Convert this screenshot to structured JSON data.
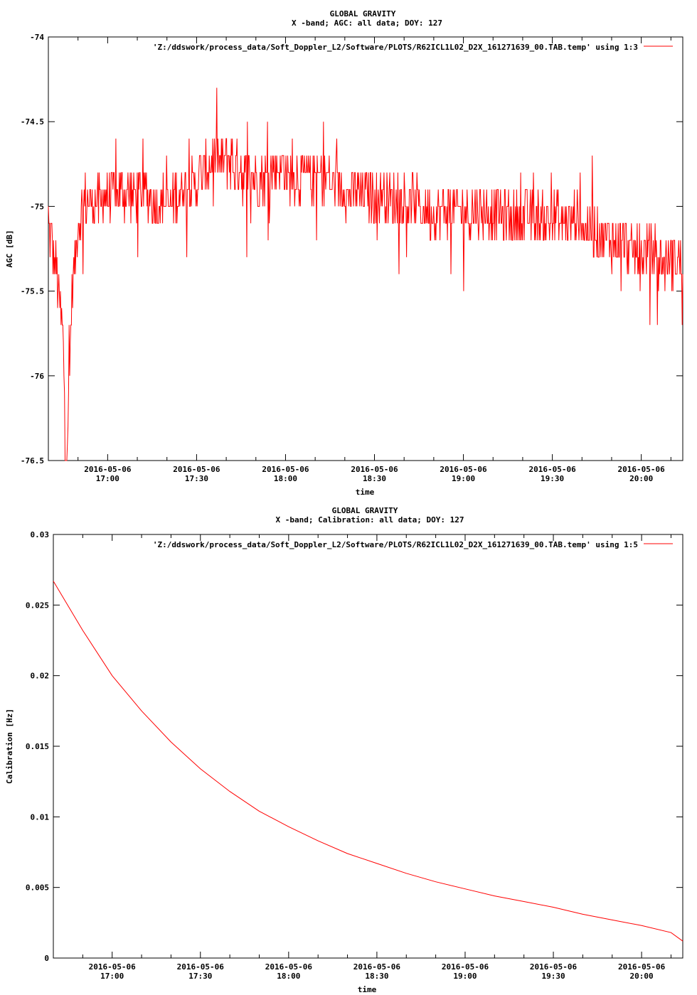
{
  "series_color": "#ff0000",
  "chart_data": [
    {
      "type": "line",
      "title": "GLOBAL GRAVITY",
      "subtitle": "X -band; AGC: all data; DOY: 127",
      "xlabel": "time",
      "ylabel": "AGC [dB]",
      "xlim": [
        "2016-05-06 16:40",
        "2016-05-06 20:14"
      ],
      "ylim": [
        -76.5,
        -74
      ],
      "yticks": [
        -74,
        -74.5,
        -75,
        -75.5,
        -76,
        -76.5
      ],
      "ytick_labels": [
        "-74",
        "-74.5",
        "-75",
        "-75.5",
        "-76",
        "-76.5"
      ],
      "xticks": [
        "2016-05-06 17:00",
        "2016-05-06 17:30",
        "2016-05-06 18:00",
        "2016-05-06 18:30",
        "2016-05-06 19:00",
        "2016-05-06 19:30",
        "2016-05-06 20:00"
      ],
      "xtick_labels": [
        [
          "2016-05-06",
          "17:00"
        ],
        [
          "2016-05-06",
          "17:30"
        ],
        [
          "2016-05-06",
          "18:00"
        ],
        [
          "2016-05-06",
          "18:30"
        ],
        [
          "2016-05-06",
          "19:00"
        ],
        [
          "2016-05-06",
          "19:30"
        ],
        [
          "2016-05-06",
          "20:00"
        ]
      ],
      "legend": "top-right",
      "series": [
        {
          "name": "'Z:/ddswork/process_data/Soft_Doppler_L2/Software/PLOTS/R62ICL1L02_D2X_161271639_00.TAB.temp' using 1:3",
          "x": [
            "2016-05-06 16:40",
            "2016-05-06 16:42",
            "2016-05-06 16:44",
            "2016-05-06 16:45",
            "2016-05-06 16:46",
            "2016-05-06 16:47",
            "2016-05-06 16:48",
            "2016-05-06 16:50",
            "2016-05-06 16:52",
            "2016-05-06 16:55",
            "2016-05-06 16:58",
            "2016-05-06 17:00",
            "2016-05-06 17:05",
            "2016-05-06 17:10",
            "2016-05-06 17:15",
            "2016-05-06 17:20",
            "2016-05-06 17:25",
            "2016-05-06 17:30",
            "2016-05-06 17:35",
            "2016-05-06 17:40",
            "2016-05-06 17:45",
            "2016-05-06 17:50",
            "2016-05-06 17:55",
            "2016-05-06 18:00",
            "2016-05-06 18:05",
            "2016-05-06 18:10",
            "2016-05-06 18:15",
            "2016-05-06 18:20",
            "2016-05-06 18:25",
            "2016-05-06 18:30",
            "2016-05-06 18:35",
            "2016-05-06 18:40",
            "2016-05-06 18:45",
            "2016-05-06 18:50",
            "2016-05-06 18:55",
            "2016-05-06 19:00",
            "2016-05-06 19:05",
            "2016-05-06 19:10",
            "2016-05-06 19:15",
            "2016-05-06 19:20",
            "2016-05-06 19:25",
            "2016-05-06 19:30",
            "2016-05-06 19:35",
            "2016-05-06 19:40",
            "2016-05-06 19:45",
            "2016-05-06 19:50",
            "2016-05-06 19:55",
            "2016-05-06 20:00",
            "2016-05-06 20:05",
            "2016-05-06 20:10",
            "2016-05-06 20:14"
          ],
          "values": [
            -75.1,
            -75.3,
            -75.6,
            -75.8,
            -76.5,
            -76.1,
            -75.5,
            -75.1,
            -75.0,
            -75.0,
            -74.95,
            -74.9,
            -74.95,
            -74.9,
            -74.95,
            -75.0,
            -74.9,
            -74.85,
            -74.75,
            -74.7,
            -74.8,
            -74.85,
            -74.8,
            -74.8,
            -74.85,
            -74.8,
            -74.85,
            -74.9,
            -74.95,
            -74.9,
            -74.95,
            -75.0,
            -75.0,
            -75.05,
            -75.0,
            -75.05,
            -75.05,
            -75.0,
            -75.1,
            -75.05,
            -75.1,
            -75.1,
            -75.05,
            -75.1,
            -75.15,
            -75.2,
            -75.25,
            -75.3,
            -75.3,
            -75.35,
            -75.3
          ]
        }
      ]
    },
    {
      "type": "line",
      "title": "GLOBAL GRAVITY",
      "subtitle": "X -band; Calibration: all data; DOY: 127",
      "xlabel": "time",
      "ylabel": "Calibration [Hz]",
      "xlim": [
        "2016-05-06 16:40",
        "2016-05-06 20:14"
      ],
      "ylim": [
        0,
        0.03
      ],
      "yticks": [
        0,
        0.005,
        0.01,
        0.015,
        0.02,
        0.025,
        0.03
      ],
      "ytick_labels": [
        "0",
        "0.005",
        "0.01",
        "0.015",
        "0.02",
        "0.025",
        "0.03"
      ],
      "xticks": [
        "2016-05-06 17:00",
        "2016-05-06 17:30",
        "2016-05-06 18:00",
        "2016-05-06 18:30",
        "2016-05-06 19:00",
        "2016-05-06 19:30",
        "2016-05-06 20:00"
      ],
      "xtick_labels": [
        [
          "2016-05-06",
          "17:00"
        ],
        [
          "2016-05-06",
          "17:30"
        ],
        [
          "2016-05-06",
          "18:00"
        ],
        [
          "2016-05-06",
          "18:30"
        ],
        [
          "2016-05-06",
          "19:00"
        ],
        [
          "2016-05-06",
          "19:30"
        ],
        [
          "2016-05-06",
          "20:00"
        ]
      ],
      "legend": "top-right",
      "series": [
        {
          "name": "'Z:/ddswork/process_data/Soft_Doppler_L2/Software/PLOTS/R62ICL1L02_D2X_161271639_00.TAB.temp' using 1:5",
          "x": [
            "2016-05-06 16:40",
            "2016-05-06 16:50",
            "2016-05-06 17:00",
            "2016-05-06 17:10",
            "2016-05-06 17:20",
            "2016-05-06 17:30",
            "2016-05-06 17:40",
            "2016-05-06 17:50",
            "2016-05-06 18:00",
            "2016-05-06 18:10",
            "2016-05-06 18:20",
            "2016-05-06 18:30",
            "2016-05-06 18:40",
            "2016-05-06 18:50",
            "2016-05-06 19:00",
            "2016-05-06 19:10",
            "2016-05-06 19:20",
            "2016-05-06 19:30",
            "2016-05-06 19:40",
            "2016-05-06 19:50",
            "2016-05-06 20:00",
            "2016-05-06 20:10",
            "2016-05-06 20:14"
          ],
          "values": [
            0.0267,
            0.0232,
            0.02,
            0.0175,
            0.0153,
            0.0134,
            0.0118,
            0.0104,
            0.0093,
            0.0083,
            0.0074,
            0.0067,
            0.006,
            0.0054,
            0.0049,
            0.0044,
            0.004,
            0.0036,
            0.0031,
            0.0027,
            0.0023,
            0.0018,
            0.0012
          ]
        }
      ]
    }
  ]
}
